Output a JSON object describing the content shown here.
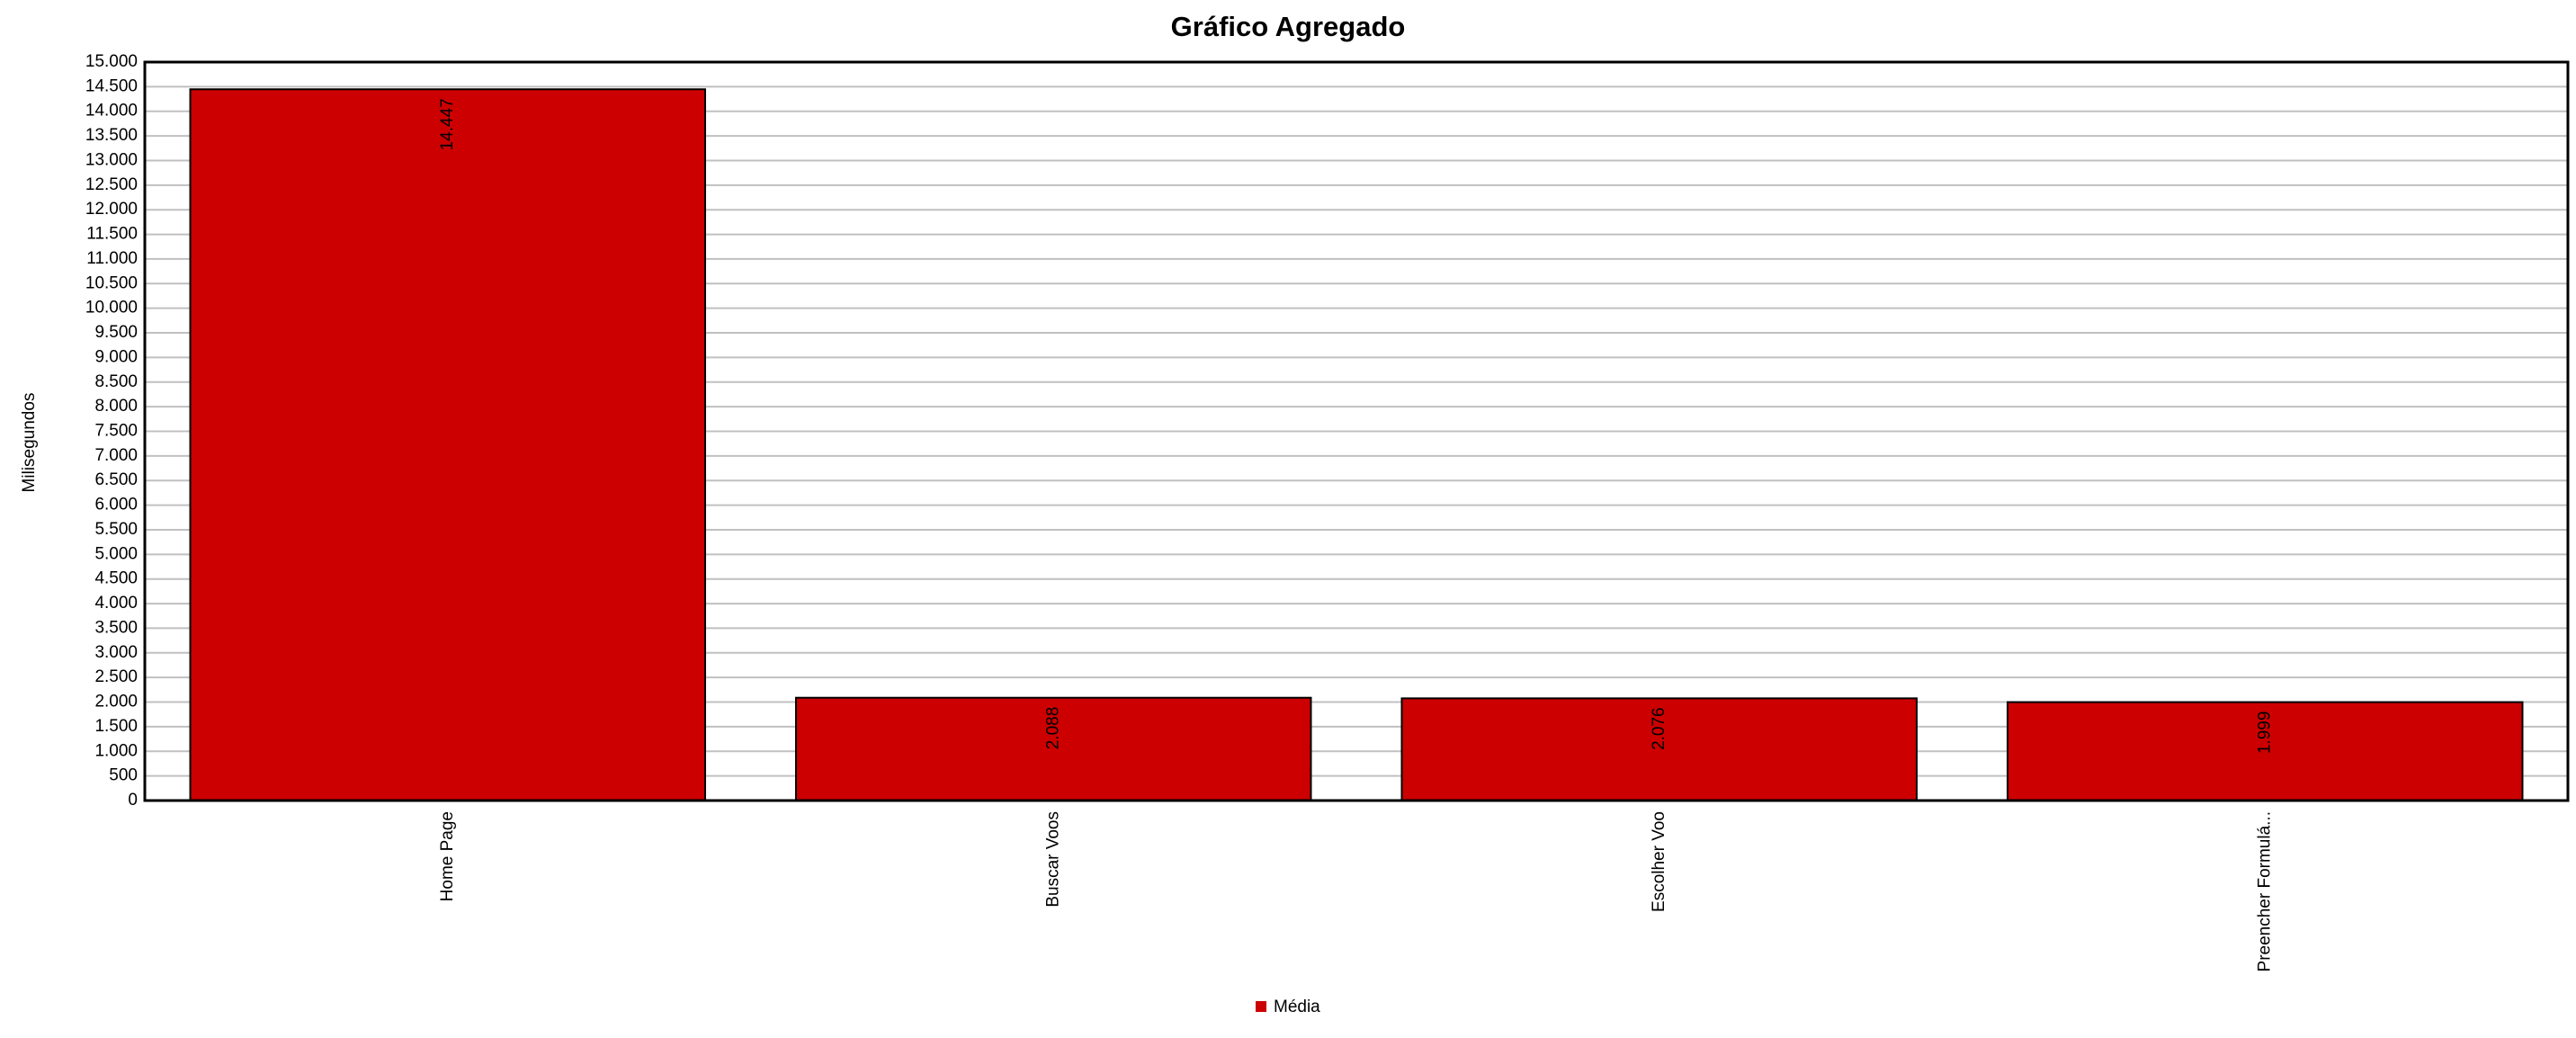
{
  "chart_data": {
    "type": "bar",
    "title": "Gráfico Agregado",
    "y_label": "Milisegundos",
    "categories": [
      "Home Page",
      "Buscar Voos",
      "Escolher Voo",
      "Preencher Formulá..."
    ],
    "series": [
      {
        "name": "Média",
        "color": "#cc0000",
        "values": [
          14447,
          2088,
          2076,
          1999
        ],
        "value_labels": [
          "14.447",
          "2.088",
          "2.076",
          "1.999"
        ]
      }
    ],
    "ylim": [
      0,
      15000
    ],
    "yticks": [
      0,
      500,
      {
        "value": 1000,
        "label": "1.000"
      },
      {
        "value": 1500,
        "label": "1.500"
      },
      {
        "value": 2000,
        "label": "2.000"
      },
      {
        "value": 2500,
        "label": "2.500"
      },
      {
        "value": 3000,
        "label": "3.000"
      },
      {
        "value": 3500,
        "label": "3.500"
      },
      {
        "value": 4000,
        "label": "4.000"
      },
      {
        "value": 4500,
        "label": "4.500"
      },
      {
        "value": 5000,
        "label": "5.000"
      },
      {
        "value": 5500,
        "label": "5.500"
      },
      {
        "value": 6000,
        "label": "6.000"
      },
      {
        "value": 6500,
        "label": "6.500"
      },
      {
        "value": 7000,
        "label": "7.000"
      },
      {
        "value": 7500,
        "label": "7.500"
      },
      {
        "value": 8000,
        "label": "8.000"
      },
      {
        "value": 8500,
        "label": "8.500"
      },
      {
        "value": 9000,
        "label": "9.000"
      },
      {
        "value": 9500,
        "label": "9.500"
      },
      {
        "value": 10000,
        "label": "10.000"
      },
      {
        "value": 10500,
        "label": "10.500"
      },
      {
        "value": 11000,
        "label": "11.000"
      },
      {
        "value": 11500,
        "label": "11.500"
      },
      {
        "value": 12000,
        "label": "12.000"
      },
      {
        "value": 12500,
        "label": "12.500"
      },
      {
        "value": 13000,
        "label": "13.000"
      },
      {
        "value": 13500,
        "label": "13.500"
      },
      {
        "value": 14000,
        "label": "14.000"
      },
      {
        "value": 14500,
        "label": "14.500"
      },
      {
        "value": 15000,
        "label": "15.000"
      }
    ],
    "grid": true,
    "legend": "bottom"
  }
}
